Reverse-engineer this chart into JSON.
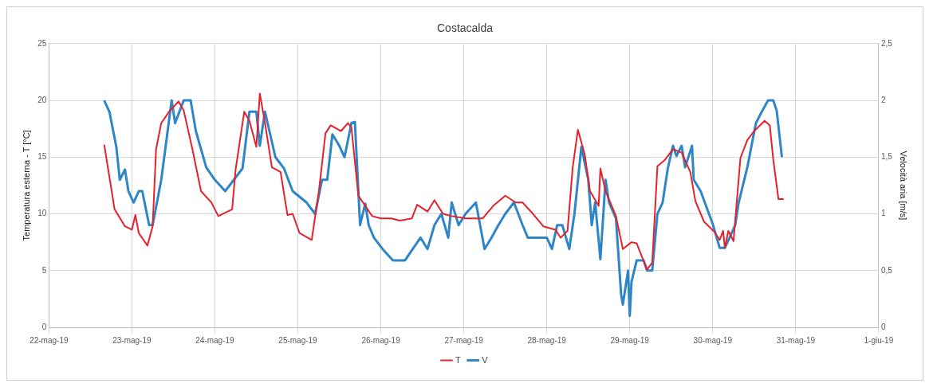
{
  "chart_data": {
    "type": "line",
    "title": "Costacalda",
    "ylabel": "Temperatura esterna - T [°C]",
    "y2label": "Velocità aria [m/s]",
    "xlim": [
      "--05-22",
      "--06-01"
    ],
    "xticks": [
      {
        "value": "--05-22",
        "label": "22-mag-19"
      },
      {
        "value": "--05-23",
        "label": "23-mag-19"
      },
      {
        "value": "--05-24",
        "label": "24-mag-19"
      },
      {
        "value": "--05-25",
        "label": "25-mag-19"
      },
      {
        "value": "--05-26",
        "label": "26-mag-19"
      },
      {
        "value": "--05-27",
        "label": "27-mag-19"
      },
      {
        "value": "--05-28",
        "label": "28-mag-19"
      },
      {
        "value": "--05-29",
        "label": "29-mag-19"
      },
      {
        "value": "--05-30",
        "label": "30-mag-19"
      },
      {
        "value": "--05-31",
        "label": "31-mag-19"
      },
      {
        "value": "--06-01",
        "label": "1-giu-19"
      }
    ],
    "ylim": [
      0,
      25
    ],
    "yticks": [
      0,
      5,
      10,
      15,
      20,
      25
    ],
    "y2lim": [
      0,
      2.5
    ],
    "y2ticks": [
      {
        "value": 0,
        "label": "0"
      },
      {
        "value": 0.5,
        "label": "0,5"
      },
      {
        "value": 1,
        "label": "1"
      },
      {
        "value": 1.5,
        "label": "1,5"
      },
      {
        "value": 2,
        "label": "2"
      },
      {
        "value": 2.5,
        "label": "2,5"
      }
    ],
    "grid": true,
    "legend": "bottom",
    "marker": "none",
    "line_style": "solid",
    "series": [
      {
        "name": "T",
        "color": "#e8202a",
        "x": [
          "--05-22T16:00",
          "--05-22T19:00",
          "--05-22T22:00",
          "--05-23T00:00",
          "--05-23T01:00",
          "--05-23T02:00",
          "--05-23T04:30",
          "--05-23T06:00",
          "--05-23T07:00",
          "--05-23T08:30",
          "--05-23T11:00",
          "--05-23T13:30",
          "--05-23T15:00",
          "--05-23T17:30",
          "--05-23T20:00",
          "--05-23T23:00",
          "--05-24T01:00",
          "--05-24T05:00",
          "--05-24T06:00",
          "--05-24T08:30",
          "--05-24T10:00",
          "--05-24T12:00",
          "--05-24T13:00",
          "--05-24T14:30",
          "--05-24T16:30",
          "--05-24T19:00",
          "--05-24T21:00",
          "--05-24T22:30",
          "--05-25T00:30",
          "--05-25T04:00",
          "--05-25T06:00",
          "--05-25T08:00",
          "--05-25T09:30",
          "--05-25T12:30",
          "--05-25T14:30",
          "--05-25T15:30",
          "--05-25T17:30",
          "--05-25T21:30",
          "--05-26T00:00",
          "--05-26T03:00",
          "--05-26T05:30",
          "--05-26T09:00",
          "--05-26T10:30",
          "--05-26T13:30",
          "--05-26T15:30",
          "--05-26T18:00",
          "--05-26T20:30",
          "--05-27T00:30",
          "--05-27T05:30",
          "--05-27T08:30",
          "--05-27T12:00",
          "--05-27T15:00",
          "--05-27T17:00",
          "--05-27T20:00",
          "--05-27T23:00",
          "--05-28T02:30",
          "--05-28T04:00",
          "--05-28T06:00",
          "--05-28T07:30",
          "--05-28T09:00",
          "--05-28T11:00",
          "--05-28T12:30",
          "--05-28T15:00",
          "--05-28T15:30",
          "--05-28T17:00",
          "--05-28T20:00",
          "--05-28T22:00",
          "--05-29T00:30",
          "--05-29T02:00",
          "--05-29T05:00",
          "--05-29T06:30",
          "--05-29T08:00",
          "--05-29T10:00",
          "--05-29T12:30",
          "--05-29T15:00",
          "--05-29T17:30",
          "--05-29T19:00",
          "--05-29T21:30",
          "--05-30T00:30",
          "--05-30T02:00",
          "--05-30T03:00",
          "--05-30T03:30",
          "--05-30T04:30",
          "--05-30T06:00",
          "--05-30T08:00",
          "--05-30T10:00",
          "--05-30T12:00",
          "--05-30T15:00",
          "--05-30T16:30",
          "--05-30T17:30",
          "--05-30T19:00",
          "--05-30T20:30"
        ],
        "values": [
          16.1,
          10.4,
          8.9,
          8.6,
          9.9,
          8.3,
          7.2,
          8.9,
          15.7,
          18.0,
          19.1,
          19.9,
          19.1,
          15.7,
          12.0,
          11.0,
          9.8,
          10.4,
          13.9,
          19.0,
          18.2,
          15.9,
          20.6,
          18.0,
          14.1,
          13.7,
          9.9,
          10.0,
          8.3,
          7.7,
          11.8,
          17.1,
          17.8,
          17.3,
          18.0,
          17.6,
          11.6,
          9.8,
          9.6,
          9.6,
          9.4,
          9.6,
          10.8,
          10.2,
          11.2,
          10.0,
          9.8,
          9.6,
          9.6,
          10.7,
          11.6,
          11.0,
          11.0,
          10.0,
          8.9,
          8.6,
          7.9,
          8.5,
          14.1,
          17.4,
          15.2,
          12.0,
          10.7,
          14.0,
          12.0,
          9.8,
          6.9,
          7.5,
          7.4,
          5.1,
          5.7,
          14.2,
          14.7,
          15.7,
          15.4,
          13.7,
          11.1,
          9.3,
          8.4,
          7.7,
          8.5,
          7.0,
          8.5,
          7.6,
          14.9,
          16.5,
          17.3,
          18.2,
          17.8,
          14.8,
          11.3,
          11.3
        ]
      },
      {
        "name": "V",
        "color": "#2e86c9",
        "axis": "y2",
        "x": [
          "--05-22T16:00",
          "--05-22T17:30",
          "--05-22T19:30",
          "--05-22T20:30",
          "--05-22T22:00",
          "--05-22T23:00",
          "--05-23T00:30",
          "--05-23T02:00",
          "--05-23T03:00",
          "--05-23T05:00",
          "--05-23T06:00",
          "--05-23T08:30",
          "--05-23T11:30",
          "--05-23T12:30",
          "--05-23T15:00",
          "--05-23T17:00",
          "--05-23T18:30",
          "--05-23T21:30",
          "--05-24T00:00",
          "--05-24T03:00",
          "--05-24T05:30",
          "--05-24T08:00",
          "--05-24T10:00",
          "--05-24T12:00",
          "--05-24T13:00",
          "--05-24T14:30",
          "--05-24T17:30",
          "--05-24T20:00",
          "--05-24T22:30",
          "--05-25T02:30",
          "--05-25T05:00",
          "--05-25T07:00",
          "--05-25T08:30",
          "--05-25T10:00",
          "--05-25T12:00",
          "--05-25T13:30",
          "--05-25T15:30",
          "--05-25T16:30",
          "--05-25T18:00",
          "--05-25T19:30",
          "--05-25T20:30",
          "--05-25T22:00",
          "--05-26T00:30",
          "--05-26T03:30",
          "--05-26T07:00",
          "--05-26T09:00",
          "--05-26T11:30",
          "--05-26T13:30",
          "--05-26T15:30",
          "--05-26T17:30",
          "--05-26T19:30",
          "--05-26T20:30",
          "--05-26T22:30",
          "--05-27T00:30",
          "--05-27T03:30",
          "--05-27T06:00",
          "--05-27T08:00",
          "--05-27T10:00",
          "--05-27T12:00",
          "--05-27T14:30",
          "--05-27T17:00",
          "--05-27T18:30",
          "--05-28T00:00",
          "--05-28T01:30",
          "--05-28T03:00",
          "--05-28T04:30",
          "--05-28T06:30",
          "--05-28T08:00",
          "--05-28T10:00",
          "--05-28T12:00",
          "--05-28T13:00",
          "--05-28T14:00",
          "--05-28T15:30",
          "--05-28T17:00",
          "--05-28T18:00",
          "--05-28T20:00",
          "--05-28T21:30",
          "--05-28T22:00",
          "--05-28T23:30",
          "--05-29T00:00",
          "--05-29T00:30",
          "--05-29T02:00",
          "--05-29T04:00",
          "--05-29T05:00",
          "--05-29T06:30",
          "--05-29T08:00",
          "--05-29T09:30",
          "--05-29T11:00",
          "--05-29T12:30",
          "--05-29T13:30",
          "--05-29T15:00",
          "--05-29T16:00",
          "--05-29T18:00",
          "--05-29T18:30",
          "--05-29T20:30",
          "--05-30T00:00",
          "--05-30T02:00",
          "--05-30T03:30",
          "--05-30T06:30",
          "--05-30T07:30",
          "--05-30T10:00",
          "--05-30T12:30",
          "--05-30T14:00",
          "--05-30T16:00",
          "--05-30T17:30",
          "--05-30T18:30",
          "--05-30T20:00"
        ],
        "values": [
          2.0,
          1.9,
          1.59,
          1.3,
          1.39,
          1.2,
          1.1,
          1.2,
          1.2,
          0.9,
          0.9,
          1.3,
          2.0,
          1.8,
          2.0,
          2.0,
          1.73,
          1.41,
          1.3,
          1.2,
          1.3,
          1.4,
          1.9,
          1.9,
          1.6,
          1.9,
          1.5,
          1.4,
          1.2,
          1.1,
          1.0,
          1.3,
          1.3,
          1.7,
          1.6,
          1.5,
          1.8,
          1.81,
          0.9,
          1.09,
          0.9,
          0.79,
          0.69,
          0.59,
          0.59,
          0.68,
          0.79,
          0.69,
          0.9,
          1.0,
          0.79,
          1.1,
          0.9,
          1.0,
          1.1,
          0.69,
          0.79,
          0.9,
          1.0,
          1.1,
          0.9,
          0.79,
          0.79,
          0.69,
          0.9,
          0.9,
          0.69,
          1.0,
          1.59,
          1.3,
          0.9,
          1.1,
          0.6,
          1.3,
          1.1,
          0.96,
          0.29,
          0.2,
          0.5,
          0.1,
          0.4,
          0.59,
          0.59,
          0.5,
          0.5,
          1.0,
          1.1,
          1.4,
          1.6,
          1.51,
          1.6,
          1.41,
          1.6,
          1.3,
          1.2,
          0.91,
          0.7,
          0.7,
          0.9,
          1.1,
          1.41,
          1.8,
          1.89,
          2.0,
          2.0,
          1.91,
          1.5
        ]
      }
    ]
  }
}
